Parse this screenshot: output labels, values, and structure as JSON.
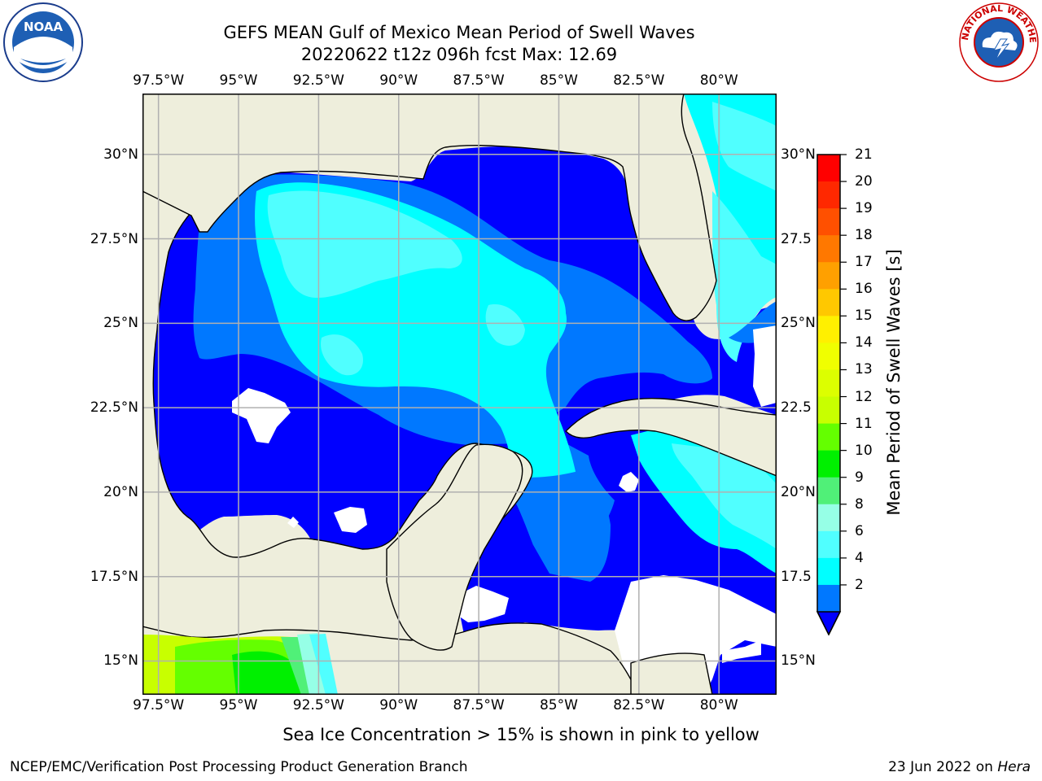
{
  "title": {
    "line1": "GEFS MEAN Gulf of Mexico Mean Period of Swell Waves",
    "line2": "20220622 t12z 096h fcst   Max: 12.69"
  },
  "logos": {
    "left": {
      "icon": "noaa-logo",
      "text": "NOAA"
    },
    "right": {
      "icon": "nws-logo",
      "text": "NATIONAL WEATHER SERVICE"
    }
  },
  "map": {
    "lon_ticks": [
      "97.5°W",
      "95°W",
      "92.5°W",
      "90°W",
      "87.5°W",
      "85°W",
      "82.5°W",
      "80°W"
    ],
    "lat_ticks_left": [
      "30°N",
      "27.5°N",
      "25°N",
      "22.5°N",
      "20°N",
      "17.5°N",
      "15°N"
    ],
    "lat_ticks_right": [
      "30°N",
      "27.5",
      "25°N",
      "22.5",
      "20°N",
      "17.5",
      "15°N"
    ],
    "extent": {
      "lon_min": -98,
      "lon_max": -78.2,
      "lat_min": 14,
      "lat_max": 31.8
    },
    "colors": {
      "land": "#eeeedc",
      "no_data": "#ffffff",
      "grid": "#b0b0b0",
      "coast": "#000000"
    }
  },
  "colorbar": {
    "label": "Mean Period of Swell Waves [s]",
    "ticks": [
      "21",
      "20",
      "19",
      "18",
      "17",
      "16",
      "15",
      "14",
      "13",
      "12",
      "11",
      "10",
      "9",
      "8",
      "6",
      "4",
      "2"
    ],
    "colors": [
      "#ff0000",
      "#ff2800",
      "#ff5000",
      "#ff7800",
      "#ffa000",
      "#ffc800",
      "#fff000",
      "#f0ff00",
      "#dcff00",
      "#c8ff00",
      "#64ff00",
      "#00f000",
      "#50f078",
      "#96ffe6",
      "#50ffff",
      "#00ffff",
      "#0078ff",
      "#0000ff"
    ]
  },
  "note": "Sea Ice Concentration > 15% is shown in pink to yellow",
  "footer": {
    "left": "NCEP/EMC/Verification Post Processing Product Generation Branch",
    "right_prefix": "23 Jun 2022 on ",
    "right_host": "Hera"
  }
}
